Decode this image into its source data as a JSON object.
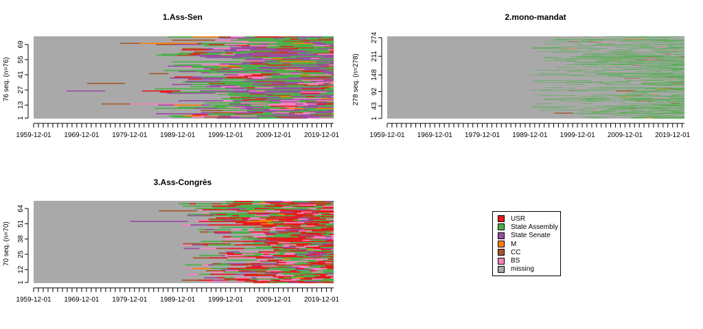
{
  "chart_data": [
    {
      "type": "heatmap",
      "title": "1.Ass-Sen",
      "ylabel": "76 seq. (n=76)",
      "n_seq": 76,
      "x_range": [
        "1959-12-01",
        "2022-06-01"
      ],
      "x_tick_labels": [
        "1959-12-01",
        "1969-12-01",
        "1979-12-01",
        "1989-12-01",
        "1999-12-01",
        "2009-12-01",
        "2019-12-01"
      ],
      "y_tick_labels": [
        "1",
        "13",
        "27",
        "41",
        "55",
        "69"
      ],
      "states_present": [
        "State Assembly",
        "State Senate",
        "USR",
        "M",
        "CC",
        "BS"
      ],
      "sample_spells": [
        {
          "seq": 26,
          "state": "State Senate",
          "start": 1966.8,
          "end": 1974.8
        },
        {
          "seq": 33,
          "state": "CC",
          "start": 1971.0,
          "end": 1979.0
        },
        {
          "seq": 14,
          "state": "CC",
          "start": 1974.0,
          "end": 1980.0
        },
        {
          "seq": 14,
          "state": "BS",
          "start": 1980.0,
          "end": 1990.0
        },
        {
          "seq": 70,
          "state": "CC",
          "start": 1978.0,
          "end": 1982.0
        },
        {
          "seq": 70,
          "state": "M",
          "start": 1982.0,
          "end": 1994.0
        },
        {
          "seq": 26,
          "state": "USR",
          "start": 1982.5,
          "end": 1990.5
        },
        {
          "seq": 42,
          "state": "CC",
          "start": 1984.0,
          "end": 1988.0
        }
      ]
    },
    {
      "type": "heatmap",
      "title": "2.mono-mandat",
      "ylabel": "278 seq. (n=278)",
      "n_seq": 278,
      "x_range": [
        "1959-12-01",
        "2022-06-01"
      ],
      "x_tick_labels": [
        "1959-12-01",
        "1969-12-01",
        "1979-12-01",
        "1989-12-01",
        "1999-12-01",
        "2009-12-01",
        "2019-12-01"
      ],
      "y_tick_labels": [
        "1",
        "43",
        "92",
        "148",
        "211",
        "274"
      ],
      "states_present": [
        "State Assembly",
        "CC",
        "M",
        "BS"
      ],
      "sample_spells": [
        {
          "seq": 240,
          "state": "State Assembly",
          "start": 1990.5,
          "end": 1996.0
        },
        {
          "seq": 20,
          "state": "CC",
          "start": 1995.0,
          "end": 1999.0
        },
        {
          "seq": 95,
          "state": "CC",
          "start": 2008.0,
          "end": 2012.0
        }
      ]
    },
    {
      "type": "heatmap",
      "title": "3.Ass-Congrès",
      "ylabel": "70 seq. (n=70)",
      "n_seq": 70,
      "x_range": [
        "1959-12-01",
        "2022-06-01"
      ],
      "x_tick_labels": [
        "1959-12-01",
        "1969-12-01",
        "1979-12-01",
        "1989-12-01",
        "1999-12-01",
        "2009-12-01",
        "2019-12-01"
      ],
      "y_tick_labels": [
        "1",
        "12",
        "25",
        "38",
        "51",
        "64"
      ],
      "states_present": [
        "USR",
        "State Assembly",
        "State Senate",
        "M",
        "CC",
        "BS"
      ],
      "sample_spells": [
        {
          "seq": 53,
          "state": "State Senate",
          "start": 1980.0,
          "end": 1992.0
        },
        {
          "seq": 62,
          "state": "CC",
          "start": 1986.0,
          "end": 1994.0
        },
        {
          "seq": 34,
          "state": "CC",
          "start": 1991.0,
          "end": 2001.0
        }
      ]
    }
  ],
  "legend": {
    "items": [
      {
        "label": "USR",
        "color": "#E41A1C"
      },
      {
        "label": "State Assembly",
        "color": "#4DAF4A"
      },
      {
        "label": "State Senate",
        "color": "#984EA3"
      },
      {
        "label": "M",
        "color": "#FF7F00"
      },
      {
        "label": "CC",
        "color": "#A65628"
      },
      {
        "label": "BS",
        "color": "#F781BF"
      },
      {
        "label": "missing",
        "color": "#A9A9A9"
      }
    ]
  }
}
